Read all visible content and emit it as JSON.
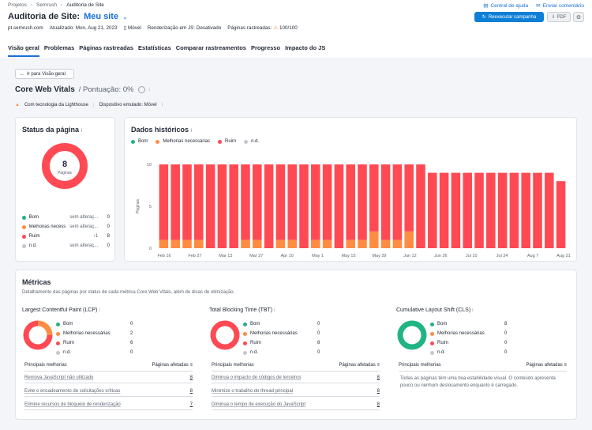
{
  "breadcrumb": [
    "Projetos",
    "Semrush",
    "Auditoria de Site"
  ],
  "top_links": {
    "help": "Central de ajuda",
    "feedback": "Enviar comentário"
  },
  "title": "Auditoria de Site:",
  "project_name": "Meu site",
  "buttons": {
    "rerun": "Reexecutar campanha",
    "pdf": "PDF"
  },
  "meta": {
    "domain": "pt.semrush.com",
    "updated": "Atualizado: Mon, Aug 21, 2023",
    "device": "Móvel",
    "js_render": "Renderização em JS: Desativado",
    "crawled": "Páginas rastreadas:",
    "crawled_value": "100/100"
  },
  "tabs": [
    "Visão geral",
    "Problemas",
    "Páginas rastreadas",
    "Estatísticas",
    "Comparar rastreamentos",
    "Progresso",
    "Impacto do JS"
  ],
  "back_button": "Ir para Visão geral",
  "cwv": {
    "title": "Core Web Vitals",
    "score": "/ Pontuação: 0%",
    "tech": "Com tecnologia da Lighthouse",
    "device": "Dispositivo emulado: Móvel"
  },
  "status_card": {
    "title": "Status da página",
    "total": "8",
    "total_label": "Páginas",
    "rows": [
      {
        "label": "Bom",
        "change": "sem alteraç...",
        "value": "0",
        "color": "#20b483"
      },
      {
        "label": "Melhorias necessárias",
        "change": "sem alteraç...",
        "value": "0",
        "color": "#ff8c43"
      },
      {
        "label": "Ruim",
        "change": "↑1",
        "value": "8",
        "color": "#ff4953"
      },
      {
        "label": "n.d.",
        "change": "sem alteraç...",
        "value": "0",
        "color": "#c4c7cd"
      }
    ]
  },
  "history_card": {
    "title": "Dados históricos",
    "legend": [
      "Bom",
      "Melhorias necessárias",
      "Ruim",
      "n.d."
    ]
  },
  "chart_data": {
    "type": "bar",
    "stacked": true,
    "ylabel": "Páginas",
    "ylim": [
      0,
      10
    ],
    "yticks": [
      "10",
      "5",
      "0"
    ],
    "xticks": [
      "Feb 16",
      "Feb 27",
      "Mar 13",
      "Mar 27",
      "Apr 10",
      "May 1",
      "May 15",
      "May 29",
      "Jun 12",
      "Jun 26",
      "Jul 10",
      "Jul 24",
      "Aug 7",
      "Aug 21"
    ],
    "series": [
      {
        "name": "Melhorias necessárias",
        "color": "#ff8c43",
        "values": [
          1,
          1,
          1,
          1,
          0,
          0,
          0,
          1,
          1,
          0,
          1,
          1,
          0,
          1,
          1,
          0,
          1,
          1,
          2,
          1,
          1,
          2,
          0,
          0,
          0,
          0,
          0,
          0,
          0,
          0,
          0,
          0,
          0,
          0,
          0
        ]
      },
      {
        "name": "Ruim",
        "color": "#ff4953",
        "values": [
          9,
          9,
          9,
          9,
          10,
          10,
          10,
          9,
          9,
          10,
          9,
          9,
          10,
          9,
          9,
          10,
          9,
          9,
          8,
          9,
          9,
          8,
          10,
          9,
          9,
          9,
          9,
          9,
          9,
          9,
          9,
          9,
          9,
          9,
          8
        ]
      }
    ]
  },
  "metrics": {
    "title": "Métricas",
    "subtitle": "Detalhamento das páginas por status de cada métrica Core Web Vitals, além de dicas de otimização.",
    "headers": {
      "improvements": "Principais melhorias",
      "affected": "Páginas afetadas"
    },
    "blocks": [
      {
        "title": "Largest Contentful Paint (LCP)",
        "legend": [
          {
            "label": "Bom",
            "value": "0",
            "color": "#20b483"
          },
          {
            "label": "Melhorias necessárias",
            "value": "2",
            "color": "#ff8c43"
          },
          {
            "label": "Ruim",
            "value": "6",
            "color": "#ff4953"
          },
          {
            "label": "n.d.",
            "value": "0",
            "color": "#c4c7cd"
          }
        ],
        "donut": [
          0,
          2,
          6,
          0
        ],
        "improvements": [
          {
            "label": "Remova JavaScript não utilizado",
            "value": "8"
          },
          {
            "label": "Evite o encadeamento de solicitações críticas",
            "value": "8"
          },
          {
            "label": "Elimine recursos de bloqueio de renderização",
            "value": "7"
          }
        ]
      },
      {
        "title": "Total Blocking Time (TBT)",
        "legend": [
          {
            "label": "Bom",
            "value": "0",
            "color": "#20b483"
          },
          {
            "label": "Melhorias necessárias",
            "value": "0",
            "color": "#ff8c43"
          },
          {
            "label": "Ruim",
            "value": "8",
            "color": "#ff4953"
          },
          {
            "label": "n.d.",
            "value": "0",
            "color": "#c4c7cd"
          }
        ],
        "donut": [
          0,
          0,
          8,
          0
        ],
        "improvements": [
          {
            "label": "Diminua o impacto de códigos de terceiros",
            "value": "8"
          },
          {
            "label": "Minimize o trabalho do thread principal",
            "value": "8"
          },
          {
            "label": "Diminua o tempo de execução do JavaScript",
            "value": "8"
          }
        ]
      },
      {
        "title": "Cumulative Layout Shift (CLS)",
        "legend": [
          {
            "label": "Bom",
            "value": "8",
            "color": "#20b483"
          },
          {
            "label": "Melhorias necessárias",
            "value": "0",
            "color": "#ff8c43"
          },
          {
            "label": "Ruim",
            "value": "0",
            "color": "#ff4953"
          },
          {
            "label": "n.d.",
            "value": "0",
            "color": "#c4c7cd"
          }
        ],
        "donut": [
          8,
          0,
          0,
          0
        ],
        "note": "Todas as páginas têm uma boa estabilidade visual. O conteúdo apresenta pouco ou nenhum deslocamento enquanto é carregado."
      }
    ]
  }
}
